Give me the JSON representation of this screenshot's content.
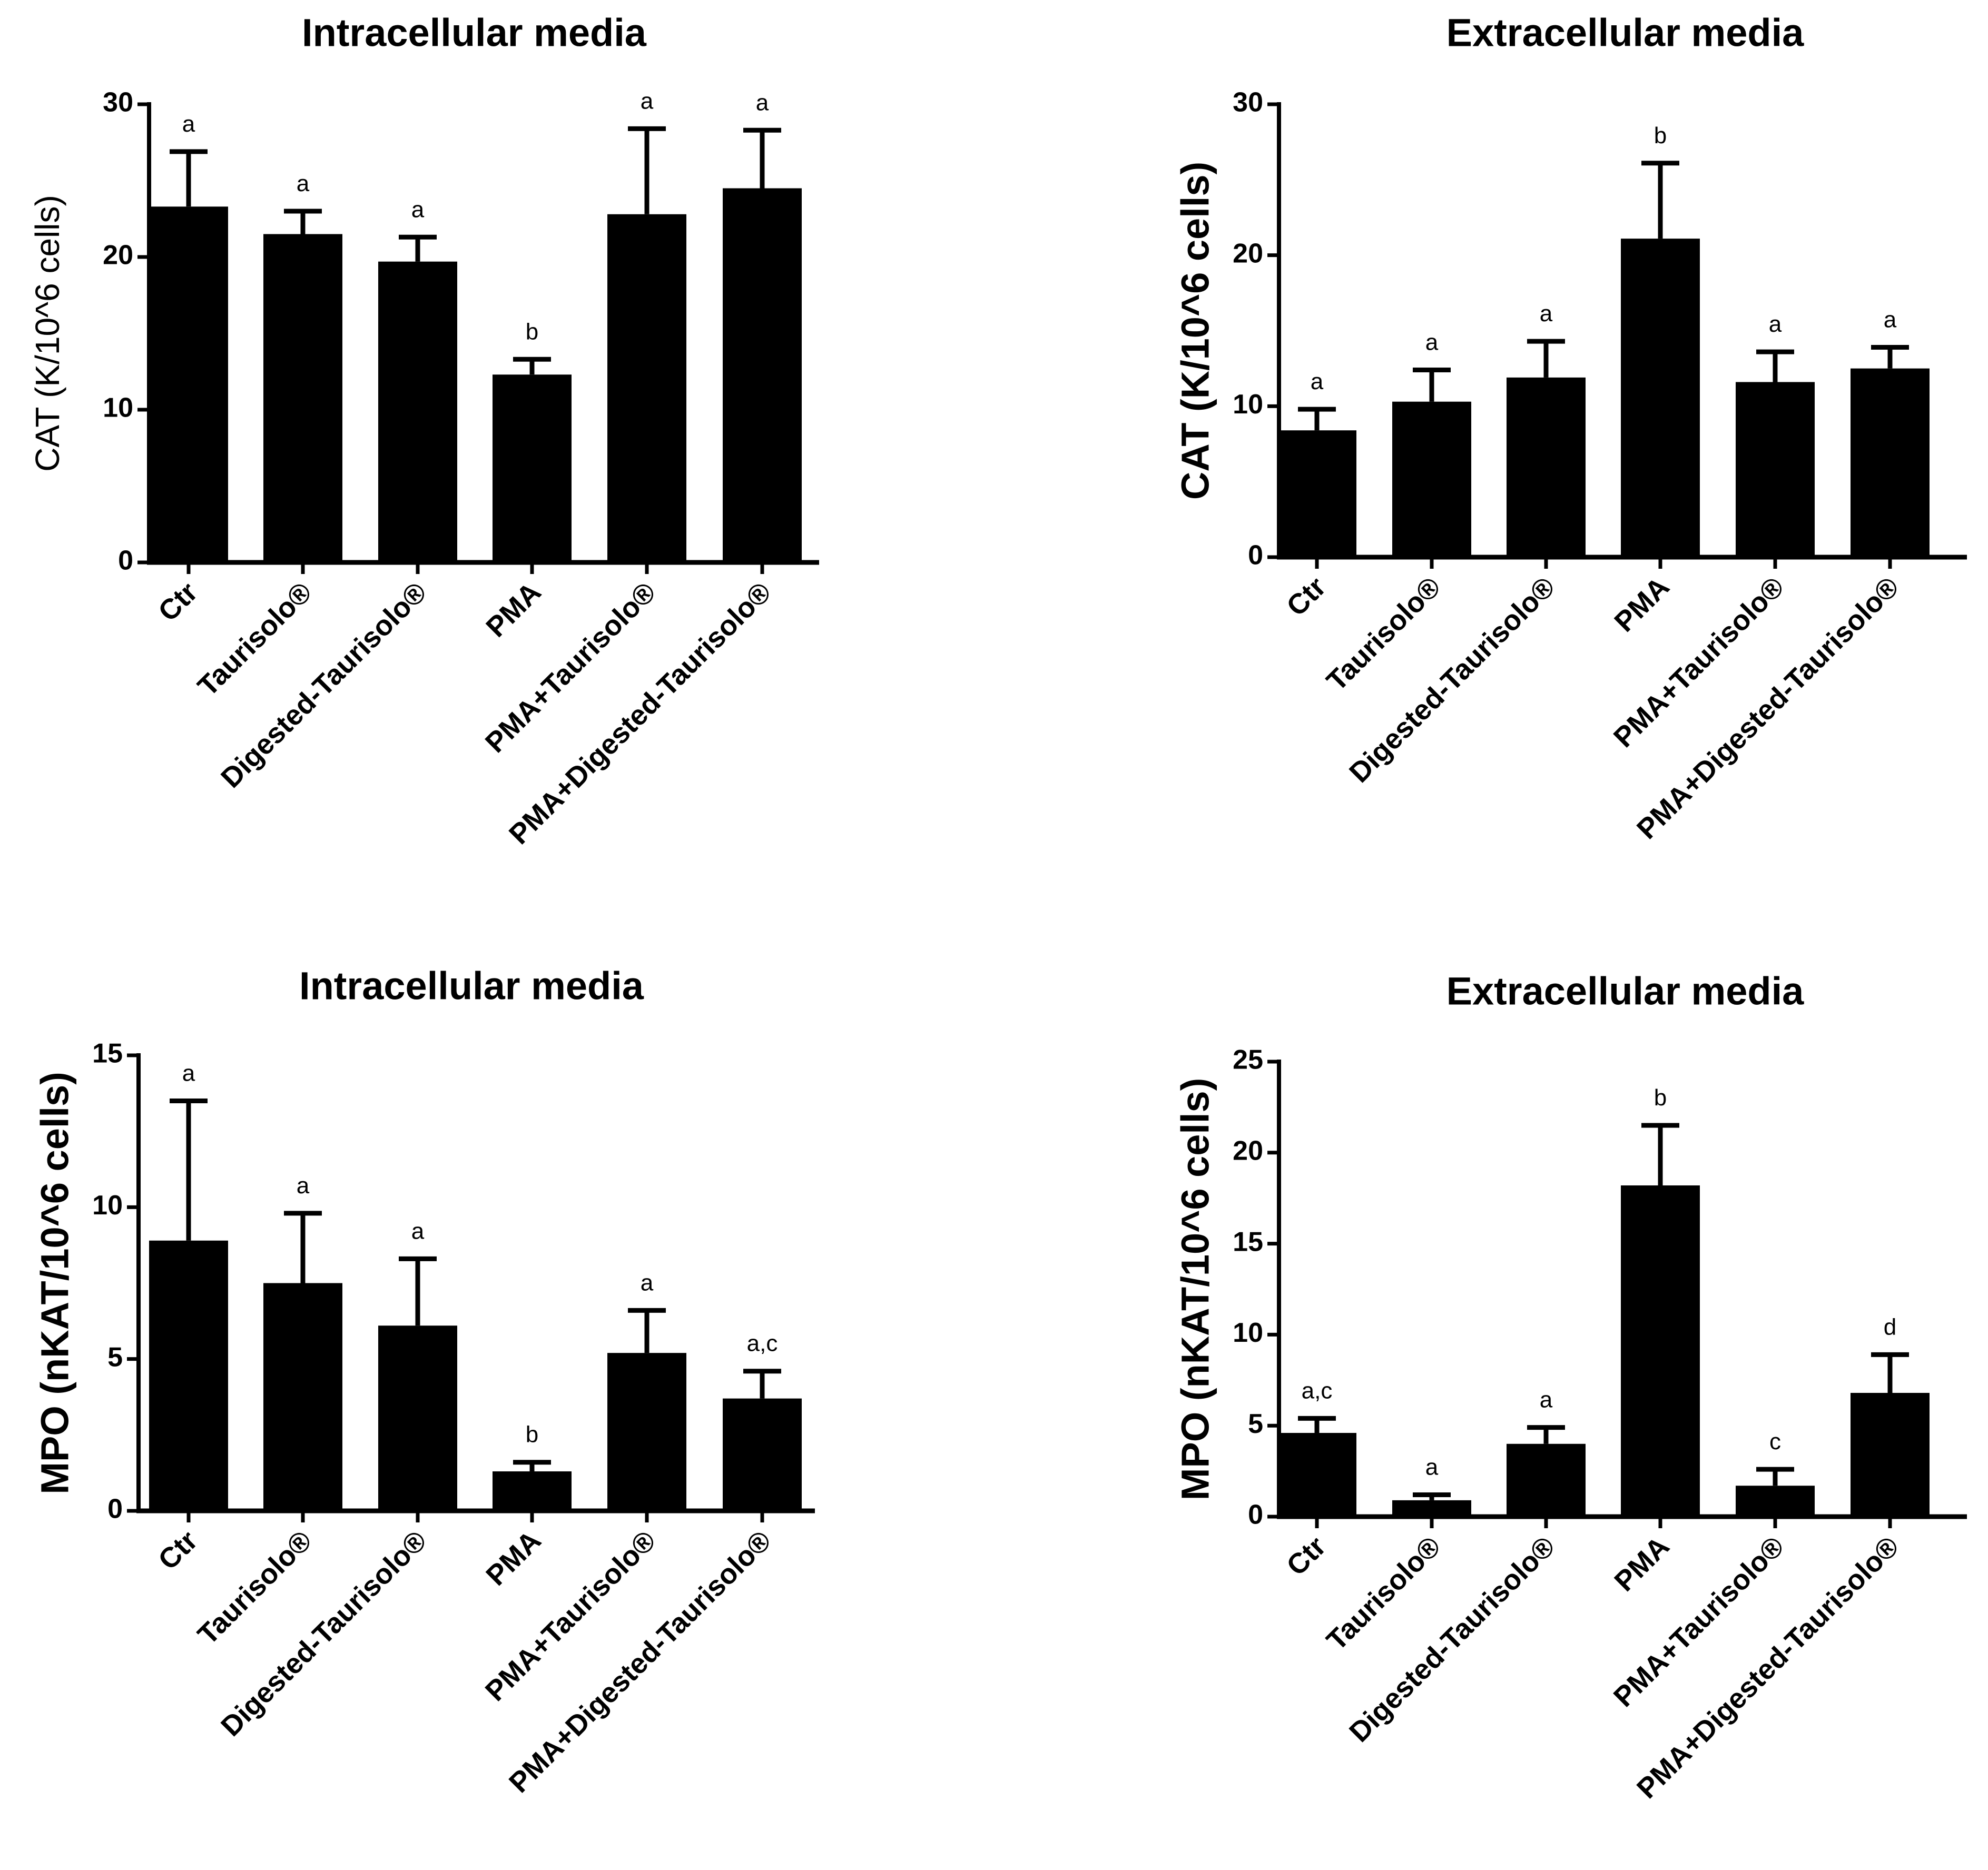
{
  "categories": [
    "Ctr",
    "Taurisolo®",
    "Digested-Taurisolo®",
    "PMA",
    "PMA+Taurisolo®",
    "PMA+Digested-Taurisolo®"
  ],
  "colors": {
    "bar": "#000000",
    "axis": "#000000",
    "background": "#ffffff"
  },
  "chart_data": [
    {
      "type": "bar",
      "title": "Intracellular media",
      "ylabel": "CAT (K/10^6 cells)",
      "ylabel_style": "light",
      "xlabel": "",
      "categories": [
        "Ctr",
        "Taurisolo®",
        "Digested-Taurisolo®",
        "PMA",
        "PMA+Taurisolo®",
        "PMA+Digested-Taurisolo®"
      ],
      "values": [
        23.3,
        21.5,
        19.7,
        12.3,
        22.8,
        24.5
      ],
      "errors": [
        3.6,
        1.5,
        1.6,
        1.0,
        5.6,
        3.8
      ],
      "significance": [
        "a",
        "a",
        "a",
        "b",
        "a",
        "a"
      ],
      "ylim": [
        0,
        30
      ],
      "yticks": [
        0,
        10,
        20,
        30
      ],
      "grid": false
    },
    {
      "type": "bar",
      "title": "Extracellular media",
      "ylabel": "CAT (K/10^6 cells)",
      "ylabel_style": "bold",
      "xlabel": "",
      "categories": [
        "Ctr",
        "Taurisolo®",
        "Digested-Taurisolo®",
        "PMA",
        "PMA+Taurisolo®",
        "PMA+Digested-Taurisolo®"
      ],
      "values": [
        8.4,
        10.3,
        11.9,
        21.1,
        11.6,
        12.5
      ],
      "errors": [
        1.4,
        2.1,
        2.4,
        5.0,
        2.0,
        1.4
      ],
      "significance": [
        "a",
        "a",
        "a",
        "b",
        "a",
        "a"
      ],
      "ylim": [
        0,
        30
      ],
      "yticks": [
        0,
        10,
        20,
        30
      ],
      "grid": false
    },
    {
      "type": "bar",
      "title": "Intracellular media",
      "ylabel": "MPO (nKAT/10^6 cells)",
      "ylabel_style": "bold",
      "xlabel": "",
      "categories": [
        "Ctr",
        "Taurisolo®",
        "Digested-Taurisolo®",
        "PMA",
        "PMA+Taurisolo®",
        "PMA+Digested-Taurisolo®"
      ],
      "values": [
        8.9,
        7.5,
        6.1,
        1.3,
        5.2,
        3.7
      ],
      "errors": [
        4.6,
        2.3,
        2.2,
        0.3,
        1.4,
        0.9
      ],
      "significance": [
        "a",
        "a",
        "a",
        "b",
        "a",
        "a,c"
      ],
      "ylim": [
        0,
        15
      ],
      "yticks": [
        0,
        5,
        10,
        15
      ],
      "grid": false
    },
    {
      "type": "bar",
      "title": "Extracellular media",
      "ylabel": "MPO (nKAT/10^6 cells)",
      "ylabel_style": "bold",
      "xlabel": "",
      "categories": [
        "Ctr",
        "Taurisolo®",
        "Digested-Taurisolo®",
        "PMA",
        "PMA+Taurisolo®",
        "PMA+Digested-Taurisolo®"
      ],
      "values": [
        4.6,
        0.9,
        4.0,
        18.2,
        1.7,
        6.8
      ],
      "errors": [
        0.8,
        0.3,
        0.9,
        3.3,
        0.9,
        2.1
      ],
      "significance": [
        "a,c",
        "a",
        "a",
        "b",
        "c",
        "d"
      ],
      "ylim": [
        0,
        25
      ],
      "yticks": [
        0,
        5,
        10,
        15,
        20,
        25
      ],
      "grid": false
    }
  ]
}
